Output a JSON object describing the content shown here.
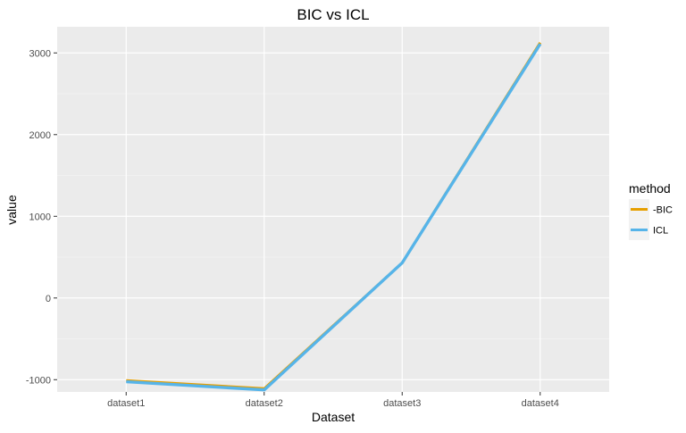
{
  "chart_data": {
    "type": "line",
    "title": "BIC vs ICL",
    "xlabel": "Dataset",
    "ylabel": "value",
    "categories": [
      "dataset1",
      "dataset2",
      "dataset3",
      "dataset4"
    ],
    "ylim": [
      -1150,
      3320
    ],
    "yticks": [
      -1000,
      0,
      1000,
      2000,
      3000
    ],
    "ytick_labels": [
      "-1000",
      "0",
      "1000",
      "2000",
      "3000"
    ],
    "grid": true,
    "legend_title": "method",
    "legend_position": "right",
    "series": [
      {
        "name": "-BIC",
        "color": "#E69F00",
        "values": [
          -1010,
          -1110,
          430,
          3125
        ]
      },
      {
        "name": "ICL",
        "color": "#56B4E9",
        "values": [
          -1025,
          -1125,
          430,
          3110
        ]
      }
    ]
  }
}
